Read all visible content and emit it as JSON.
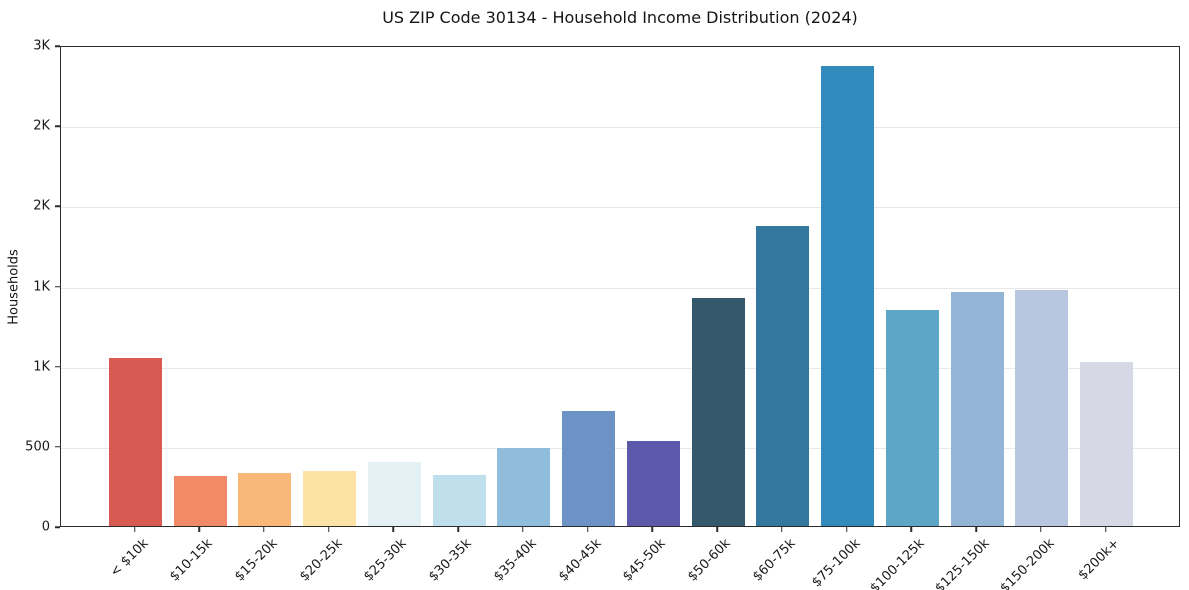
{
  "chart_data": {
    "type": "bar",
    "title": "US ZIP Code 30134 - Household Income Distribution (2024)",
    "xlabel": "",
    "ylabel": "Households",
    "ylim": [
      0,
      3000
    ],
    "ytick_values": [
      0,
      500,
      1000,
      1500,
      2000,
      2500,
      3000
    ],
    "ytick_labels": [
      "0",
      "500",
      "1K",
      "1K",
      "2K",
      "2K",
      "3K"
    ],
    "grid": "horizontal-only",
    "legend": "none",
    "categories": [
      "< $10k",
      "$10-15k",
      "$15-20k",
      "$20-25k",
      "$25-30k",
      "$30-35k",
      "$35-40k",
      "$40-45k",
      "$45-50k",
      "$50-60k",
      "$60-75k",
      "$75-100k",
      "$100-125k",
      "$125-150k",
      "$150-200k",
      "$200k+"
    ],
    "values": [
      1050,
      315,
      330,
      345,
      400,
      320,
      485,
      720,
      530,
      1420,
      1870,
      2870,
      1345,
      1460,
      1470,
      1020
    ],
    "bar_colors": [
      "#d75b53",
      "#f28a67",
      "#fab878",
      "#fce3a5",
      "#e3f0f4",
      "#bfdfec",
      "#91bddc",
      "#6d92c5",
      "#5c59ab",
      "#35596c",
      "#35789f",
      "#328abd",
      "#5ea6c8",
      "#92b5d6",
      "#b8c7df",
      "#d7d8e6"
    ]
  },
  "style_colors": {
    "background": "#ffffff",
    "grid": "#e8e8e8",
    "spine": "#2b2b2b",
    "text": "#1a1a1a"
  }
}
